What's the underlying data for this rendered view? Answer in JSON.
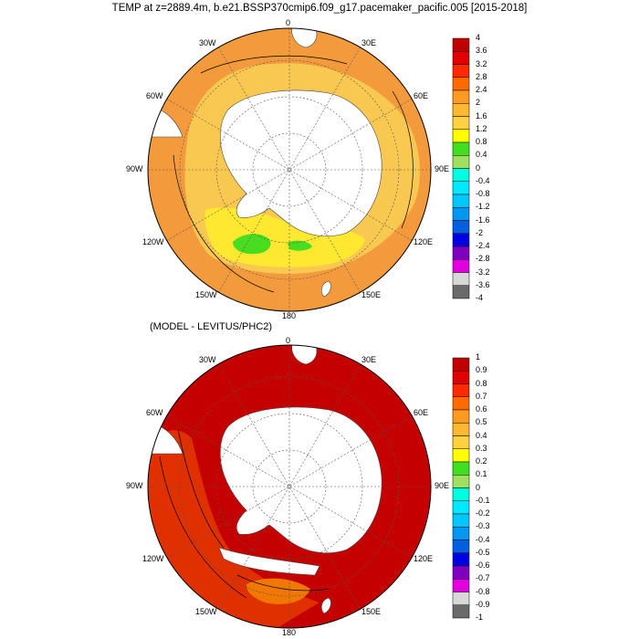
{
  "title": "TEMP at z=2889.4m, b.e21.BSSP370cmip6.f09_g17.pacemaker_pacific.005 [2015-2018]",
  "panel2_title": "(MODEL - LEVITUS/PHC2)",
  "longitude_labels": [
    "0",
    "30E",
    "60E",
    "90E",
    "120E",
    "150E",
    "180",
    "150W",
    "120W",
    "90W",
    "60W",
    "30W"
  ],
  "colorbar_top": {
    "labels": [
      "4",
      "3.6",
      "3.2",
      "2.8",
      "2.4",
      "2",
      "1.6",
      "1.2",
      "0.8",
      "0.4",
      "0",
      "-0.4",
      "-0.8",
      "-1.2",
      "-1.6",
      "-2",
      "-2.4",
      "-2.8",
      "-3.2",
      "-3.6",
      "-4"
    ],
    "colors": [
      "#c00000",
      "#e00000",
      "#ff2a00",
      "#ff6a00",
      "#ff9a20",
      "#ffb830",
      "#ffd040",
      "#ffff00",
      "#40e020",
      "#a0e060",
      "#00ffe0",
      "#00e8ff",
      "#00c8ff",
      "#0098f0",
      "#0060e0",
      "#0000e0",
      "#8000c0",
      "#e000e0",
      "#d8d8d8",
      "#6a6a6a"
    ]
  },
  "colorbar_bottom": {
    "labels": [
      "1",
      "0.9",
      "0.8",
      "0.7",
      "0.6",
      "0.5",
      "0.4",
      "0.3",
      "0.2",
      "0.1",
      "0",
      "-0.1",
      "-0.2",
      "-0.3",
      "-0.4",
      "-0.5",
      "-0.6",
      "-0.7",
      "-0.8",
      "-0.9",
      "-1"
    ],
    "colors": [
      "#c00000",
      "#e00000",
      "#ff2a00",
      "#ff6a00",
      "#ff9a20",
      "#ffb830",
      "#ffd040",
      "#ffff00",
      "#40e020",
      "#a0e060",
      "#00ffe0",
      "#00e8ff",
      "#00c8ff",
      "#0098f0",
      "#0060e0",
      "#0000e0",
      "#8000c0",
      "#e000e0",
      "#d8d8d8",
      "#6a6a6a"
    ]
  },
  "colors": {
    "top_base": "#f39a3c",
    "top_inner": "#f9c850",
    "top_yellow": "#ffe830",
    "top_green": "#48dd20",
    "bottom_base": "#c40000",
    "bottom_mid": "#e03000",
    "bottom_orange": "#f07800",
    "land": "#ffffff"
  }
}
